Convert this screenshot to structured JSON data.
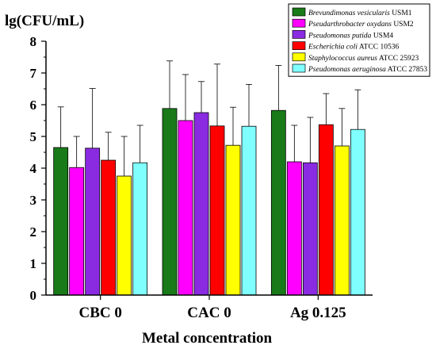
{
  "chart_data": {
    "type": "bar",
    "ylabel": "lg(CFU/mL)",
    "xlabel": "Metal concentration",
    "ylim": [
      0,
      8
    ],
    "yticks": [
      "0",
      "1",
      "2",
      "3",
      "4",
      "5",
      "6",
      "7",
      "8"
    ],
    "categories": [
      "CBC 0",
      "CAC 0",
      "Ag 0.125"
    ],
    "error_bars": true,
    "legend_position": "top-right",
    "series": [
      {
        "name_italic": "Brevundimonas vesicularis",
        "name_strain": " USM1",
        "color": "#197a19",
        "values": [
          4.65,
          5.88,
          5.82
        ],
        "errors": [
          1.28,
          1.5,
          1.42
        ]
      },
      {
        "name_italic": "Pseudarthrobacter oxydans",
        "name_strain": " USM2",
        "color": "#ff00ff",
        "values": [
          4.02,
          5.5,
          4.2
        ],
        "errors": [
          0.98,
          1.45,
          1.15
        ]
      },
      {
        "name_italic": "Pseudomonas putida",
        "name_strain": " USM4",
        "color": "#8a2be2",
        "values": [
          4.63,
          5.75,
          4.17
        ],
        "errors": [
          1.88,
          0.98,
          1.43
        ]
      },
      {
        "name_italic": "Escherichia coli",
        "name_strain": " ATCC 10536",
        "color": "#ff0000",
        "values": [
          4.25,
          5.33,
          5.37
        ],
        "errors": [
          0.88,
          1.95,
          0.98
        ]
      },
      {
        "name_italic": "Staphylococcus aureus",
        "name_strain": " ATCC 25923",
        "color": "#ffff00",
        "values": [
          3.75,
          4.72,
          4.7
        ],
        "errors": [
          1.25,
          1.2,
          1.18
        ]
      },
      {
        "name_italic": "Pseudomonas aeruginosa",
        "name_strain": " ATCC 27853",
        "color": "#80ffff",
        "values": [
          4.17,
          5.32,
          5.22
        ],
        "errors": [
          1.18,
          1.32,
          1.25
        ]
      }
    ]
  }
}
